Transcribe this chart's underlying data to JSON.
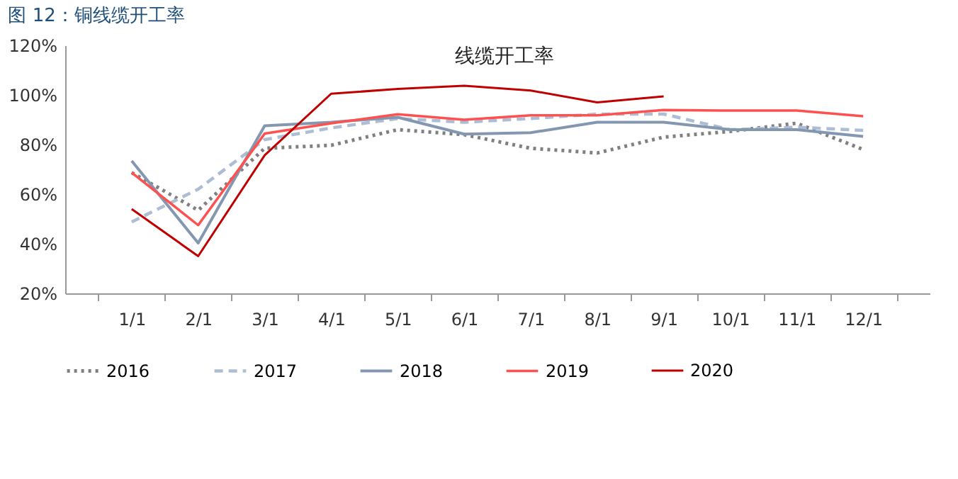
{
  "chart_data": {
    "type": "line",
    "title": "图 12：铜线缆开工率",
    "subtitle": "线缆开工率",
    "categories": [
      "1/1",
      "2/1",
      "3/1",
      "4/1",
      "5/1",
      "6/1",
      "7/1",
      "8/1",
      "9/1",
      "10/1",
      "11/1",
      "12/1"
    ],
    "series": [
      {
        "name": "2016",
        "color": "#808080",
        "line_style": "dotted",
        "values": [
          68.7,
          53.5,
          78.5,
          79.7,
          86,
          84,
          78.5,
          76.6,
          83,
          85.3,
          88.6,
          78
        ]
      },
      {
        "name": "2017",
        "color": "#adbdd3",
        "line_style": "dashed",
        "values": [
          48.8,
          62,
          82,
          86.7,
          90.5,
          89,
          90.5,
          92.3,
          92.3,
          86,
          87,
          85.7
        ]
      },
      {
        "name": "2018",
        "color": "#8497b0",
        "line_style": "solid",
        "values": [
          73.4,
          40.3,
          87.6,
          89,
          91,
          84.2,
          84.8,
          89,
          89,
          86,
          86,
          83.3
        ]
      },
      {
        "name": "2019",
        "color": "#ff5050",
        "line_style": "solid",
        "values": [
          68.7,
          47.5,
          84.4,
          88.6,
          92.2,
          90,
          91.8,
          91.8,
          93.9,
          93.7,
          93.7,
          91.4
        ]
      },
      {
        "name": "2020",
        "color": "#c00000",
        "line_style": "solid",
        "values": [
          54,
          35,
          75.7,
          100.5,
          102.4,
          103.7,
          101.8,
          97,
          99.4,
          null,
          null,
          null
        ]
      }
    ],
    "ylim": [
      20,
      120
    ],
    "yticks": [
      {
        "value": 20,
        "label": "20%"
      },
      {
        "value": 40,
        "label": "40%"
      },
      {
        "value": 60,
        "label": "60%"
      },
      {
        "value": 80,
        "label": "80%"
      },
      {
        "value": 100,
        "label": "100%"
      },
      {
        "value": 120,
        "label": "120%"
      }
    ],
    "grid": false,
    "legend": "bottom",
    "marker": "none"
  }
}
